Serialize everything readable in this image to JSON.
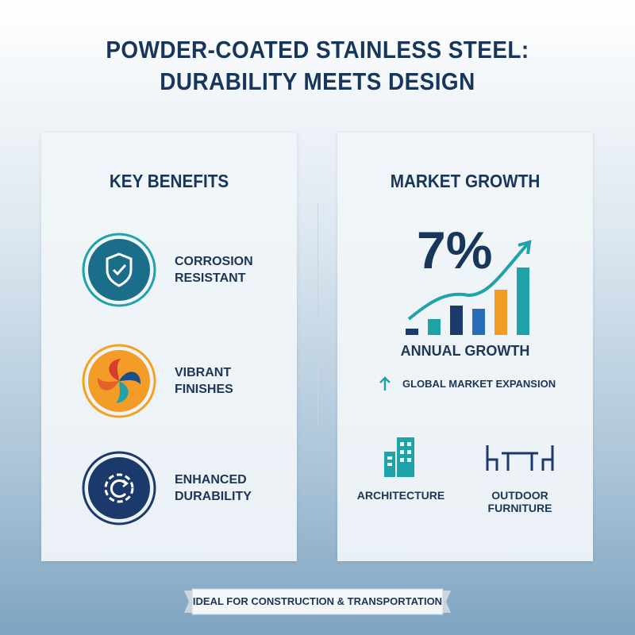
{
  "header": {
    "title_line1": "POWDER-COATED STAINLESS STEEL:",
    "title_line2": "DURABILITY MEETS DESIGN"
  },
  "benefits": {
    "heading": "KEY BENEFITS",
    "items": [
      "CORROSION RESISTANT",
      "VIBRANT FINISHES",
      "ENHANCED DURABILITY"
    ]
  },
  "market": {
    "heading": "MARKET GROWTH",
    "stat": "7%",
    "stat_label": "ANNUAL GROWTH",
    "note": "GLOBAL MARKET EXPANSION",
    "applications": [
      "ARCHITECTURE",
      "OUTDOOR FURNITURE"
    ]
  },
  "footer": {
    "banner": "IDEAL FOR CONSTRUCTION & TRANSPORTATION"
  }
}
